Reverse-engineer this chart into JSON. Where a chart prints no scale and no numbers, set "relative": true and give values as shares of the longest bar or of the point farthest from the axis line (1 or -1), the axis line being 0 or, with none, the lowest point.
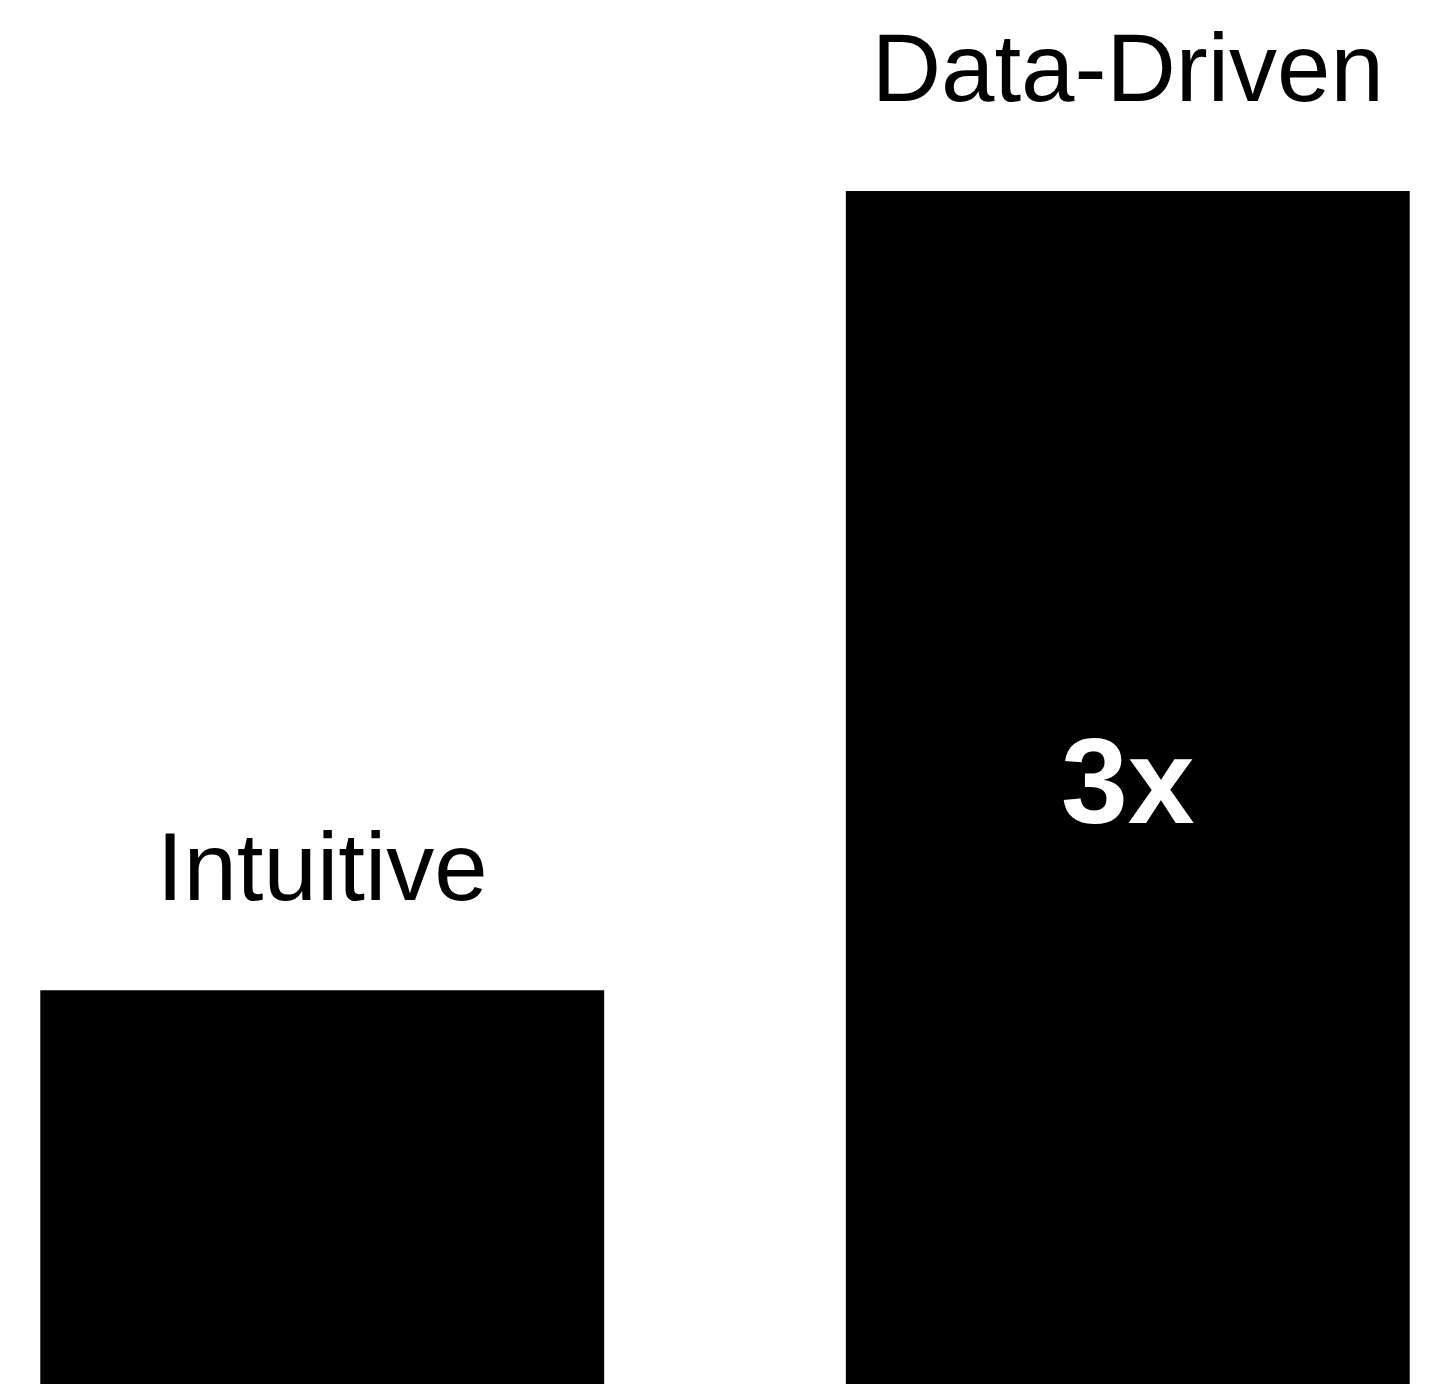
{
  "chart_data": {
    "type": "bar",
    "relative": true,
    "categories": [
      "Intuitive",
      "Data-Driven"
    ],
    "values": [
      0.33,
      1
    ],
    "color": "#000000",
    "annotations": [
      "3x"
    ]
  }
}
